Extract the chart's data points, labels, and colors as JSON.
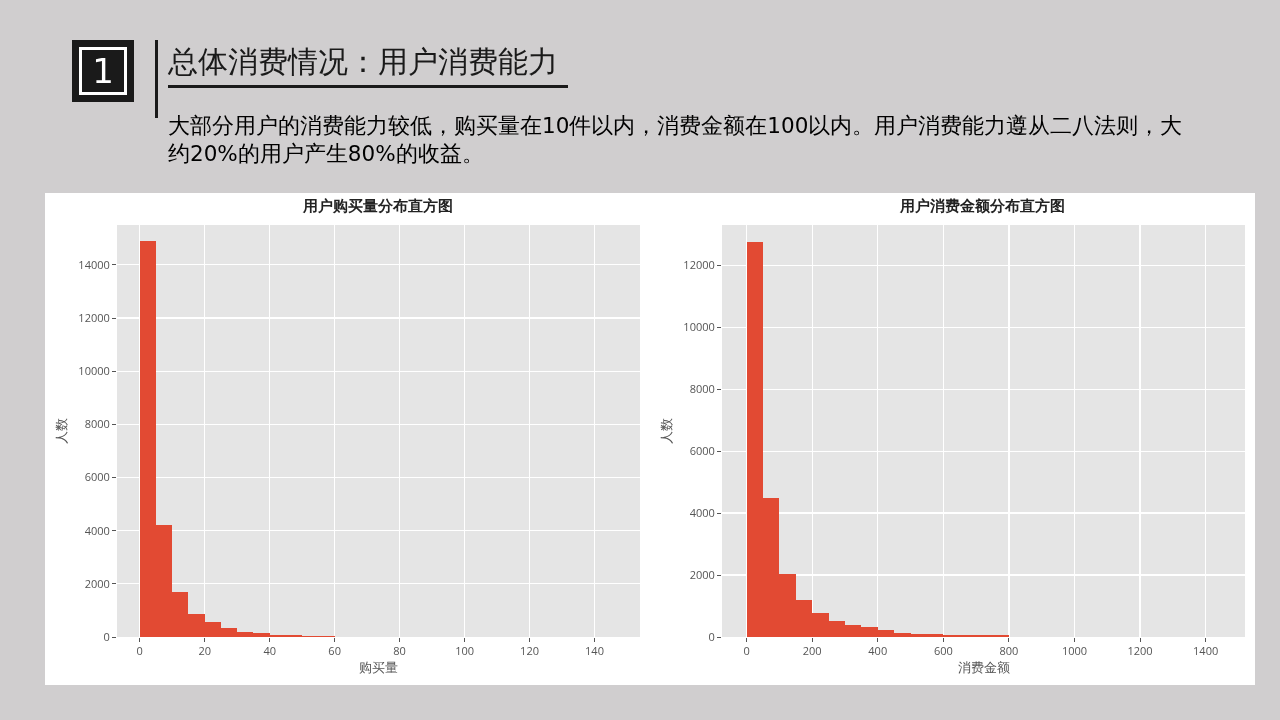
{
  "chart_data": [
    {
      "type": "other",
      "title": "总体消费情况：用户消费能力",
      "subtitle": "大部分用户的消费能力较低，购买量在10件以内，消费金额在100以内。用户消费能力遵从二八法则，大约20%的用户产生80%的收益。",
      "annotations": [
        "1"
      ]
    },
    {
      "type": "histogram",
      "title": "用户购买量分布直方图",
      "xlabel": "购买量",
      "ylabel": "人数",
      "color": "#e24a33",
      "bins": [
        0,
        5,
        10,
        15,
        20,
        25,
        30,
        35,
        40,
        45,
        50,
        55,
        60
      ],
      "values": [
        14900,
        4200,
        1700,
        860,
        580,
        340,
        190,
        140,
        90,
        90,
        50,
        50
      ],
      "xlim": [
        -7,
        154
      ],
      "xticks": [
        0,
        20,
        40,
        60,
        80,
        100,
        120,
        140
      ],
      "ylim": [
        0,
        15500
      ],
      "yticks": [
        0,
        2000,
        4000,
        6000,
        8000,
        10000,
        12000,
        14000
      ],
      "grid": true
    },
    {
      "type": "histogram",
      "title": "用户消费金额分布直方图",
      "xlabel": "消费金额",
      "ylabel": "人数",
      "color": "#e24a33",
      "bins": [
        0,
        50,
        100,
        150,
        200,
        250,
        300,
        350,
        400,
        450,
        500,
        550,
        600,
        650,
        700,
        750,
        800
      ],
      "values": [
        12750,
        4500,
        2040,
        1210,
        760,
        510,
        380,
        310,
        230,
        140,
        100,
        100,
        50,
        50,
        50,
        50
      ],
      "xlim": [
        -75,
        1520
      ],
      "xticks": [
        0,
        200,
        400,
        600,
        800,
        1000,
        1200,
        1400
      ],
      "ylim": [
        0,
        13300
      ],
      "yticks": [
        0,
        2000,
        4000,
        6000,
        8000,
        10000,
        12000
      ],
      "grid": true
    }
  ]
}
